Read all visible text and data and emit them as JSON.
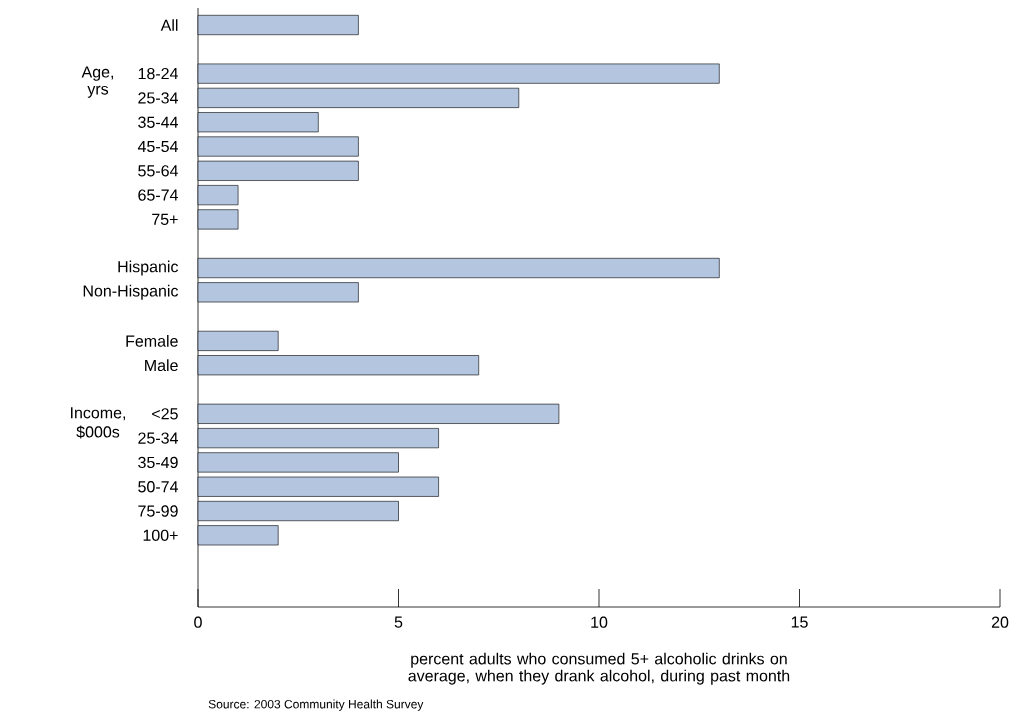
{
  "chart_data": {
    "type": "bar",
    "orientation": "horizontal",
    "categories": [
      "All",
      null,
      "18-24",
      "25-34",
      "35-44",
      "45-54",
      "55-64",
      "65-74",
      "75+",
      null,
      "Hispanic",
      "Non-Hispanic",
      null,
      "Female",
      "Male",
      null,
      "<25",
      "25-34",
      "35-49",
      "50-74",
      "75-99",
      "100+"
    ],
    "values": [
      4,
      null,
      13,
      8,
      3,
      4,
      4,
      1,
      1,
      null,
      13,
      4,
      null,
      2,
      7,
      null,
      9,
      6,
      5,
      6,
      5,
      2
    ],
    "color": "#b4c6df",
    "xlim": [
      0,
      20
    ],
    "xticks": [
      0,
      5,
      10,
      15,
      20
    ],
    "xlabel": "percent adults who consumed 5+ alcoholic drinks on average, when they drank alcohol, during past month",
    "grid": false,
    "annotations": [
      "Age,",
      "yrs",
      "Income,",
      "$000s",
      "Source: 2003 Community Health Survey"
    ]
  }
}
